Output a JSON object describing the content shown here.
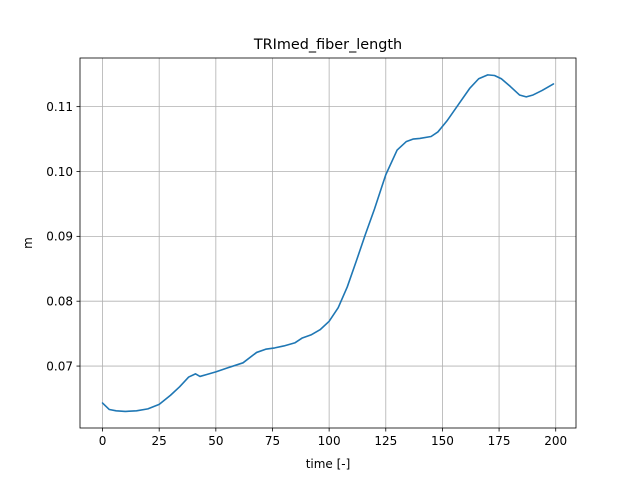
{
  "chart_data": {
    "type": "line",
    "title": "TRImed_fiber_length",
    "xlabel": "time [-]",
    "ylabel": "m",
    "xlim": [
      -9.95,
      208.95
    ],
    "ylim": [
      0.06045,
      0.1175
    ],
    "xticks": [
      0,
      25,
      50,
      75,
      100,
      125,
      150,
      175,
      200
    ],
    "xtick_labels": [
      "0",
      "25",
      "50",
      "75",
      "100",
      "125",
      "150",
      "175",
      "200"
    ],
    "yticks": [
      0.07,
      0.08,
      0.09,
      0.1,
      0.11
    ],
    "ytick_labels": [
      "0.07",
      "0.08",
      "0.09",
      "0.10",
      "0.11"
    ],
    "grid": true,
    "series": [
      {
        "color": "#1f77b4",
        "x": [
          0,
          3,
          6,
          10,
          15,
          20,
          25,
          30,
          34,
          38,
          41,
          43,
          46,
          50,
          55,
          62,
          68,
          72,
          76,
          80,
          85,
          88,
          92,
          96,
          100,
          104,
          108,
          112,
          116,
          120,
          125,
          130,
          134,
          137,
          140,
          145,
          148,
          152,
          157,
          162,
          166,
          170,
          173,
          176,
          180,
          184,
          187,
          190,
          194,
          199
        ],
        "y": [
          0.0643,
          0.0633,
          0.0631,
          0.063,
          0.0631,
          0.0634,
          0.0641,
          0.0655,
          0.0668,
          0.0683,
          0.0688,
          0.0684,
          0.0687,
          0.0691,
          0.0697,
          0.0705,
          0.0721,
          0.0726,
          0.0728,
          0.0731,
          0.0736,
          0.0743,
          0.0748,
          0.0756,
          0.0769,
          0.079,
          0.0822,
          0.0862,
          0.0903,
          0.0942,
          0.0995,
          0.1033,
          0.1046,
          0.105,
          0.1051,
          0.1054,
          0.1061,
          0.1078,
          0.1103,
          0.1128,
          0.1143,
          0.1149,
          0.1148,
          0.1143,
          0.1131,
          0.1118,
          0.1115,
          0.1118,
          0.1125,
          0.1135
        ]
      }
    ]
  }
}
